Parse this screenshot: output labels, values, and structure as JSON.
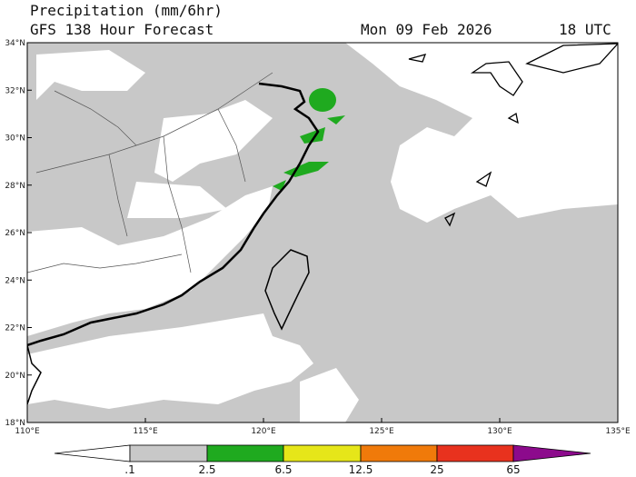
{
  "header": {
    "title": "Precipitation (mm/6hr)",
    "subtitle": "GFS 138 Hour Forecast",
    "date": "Mon 09 Feb 2026",
    "time": "18 UTC"
  },
  "map": {
    "lat_labels": [
      "34°N",
      "32°N",
      "30°N",
      "28°N",
      "26°N",
      "24°N",
      "22°N",
      "20°N",
      "18°N"
    ],
    "lon_labels": [
      "110°E",
      "115°E",
      "120°E",
      "125°E",
      "130°E",
      "135°E"
    ]
  },
  "colorbar": {
    "labels": [
      ".1",
      "2.5",
      "6.5",
      "12.5",
      "25",
      "65"
    ]
  }
}
